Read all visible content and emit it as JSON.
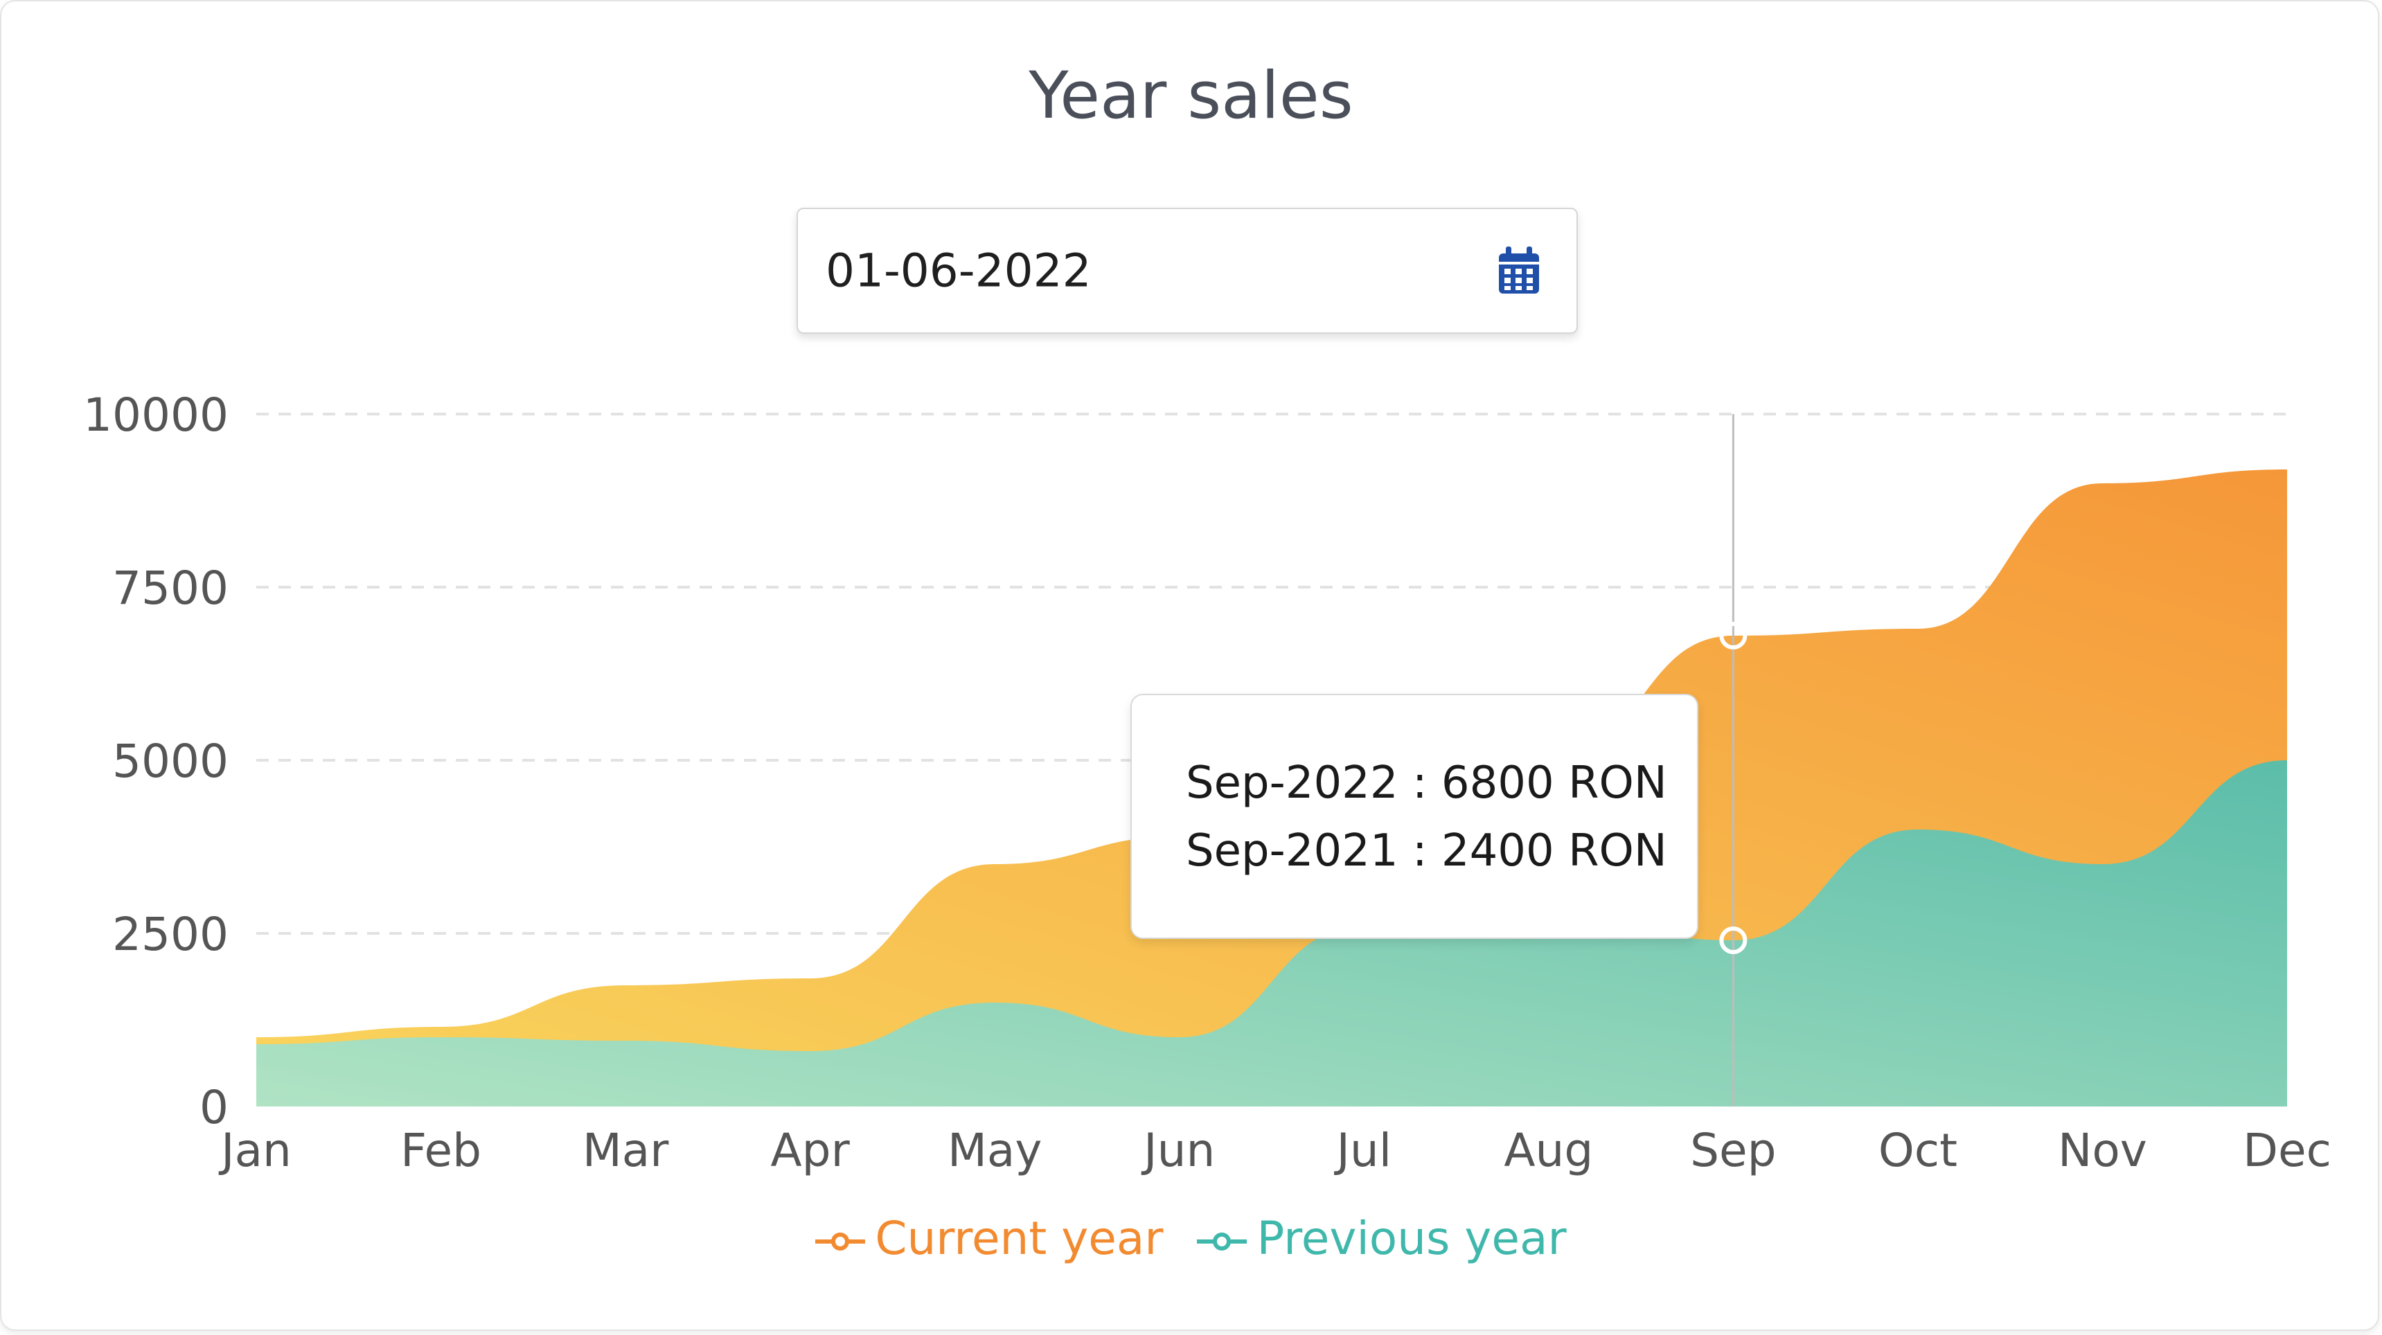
{
  "header": {
    "title": "Year sales"
  },
  "date_picker": {
    "value": "01-06-2022",
    "icon": "calendar-icon"
  },
  "tooltip": {
    "line1": "Sep-2022 : 6800 RON",
    "line2": "Sep-2021 : 2400 RON"
  },
  "colors": {
    "current_top": "#f59739",
    "current_bottom": "#f9d55d",
    "previous_top": "#5bbda9",
    "previous_bottom": "#b0e3c4",
    "grid": "#e2e2e2"
  },
  "chart_data": {
    "type": "area",
    "title": "Year sales",
    "categories": [
      "Jan",
      "Feb",
      "Mar",
      "Apr",
      "May",
      "Jun",
      "Jul",
      "Aug",
      "Sep",
      "Oct",
      "Nov",
      "Dec"
    ],
    "ylim": [
      0,
      10000
    ],
    "yticks": [
      0,
      2500,
      5000,
      7500,
      10000
    ],
    "grid": true,
    "legend": "bottom-center",
    "series": [
      {
        "name": "Current year",
        "values": [
          1000,
          1150,
          1750,
          1850,
          3500,
          3900,
          4700,
          5000,
          6800,
          6900,
          9000,
          9200
        ]
      },
      {
        "name": "Previous year",
        "values": [
          900,
          1000,
          950,
          800,
          1500,
          1000,
          2600,
          2700,
          2400,
          4000,
          3500,
          5000
        ]
      }
    ],
    "highlighted_category": "Sep"
  }
}
